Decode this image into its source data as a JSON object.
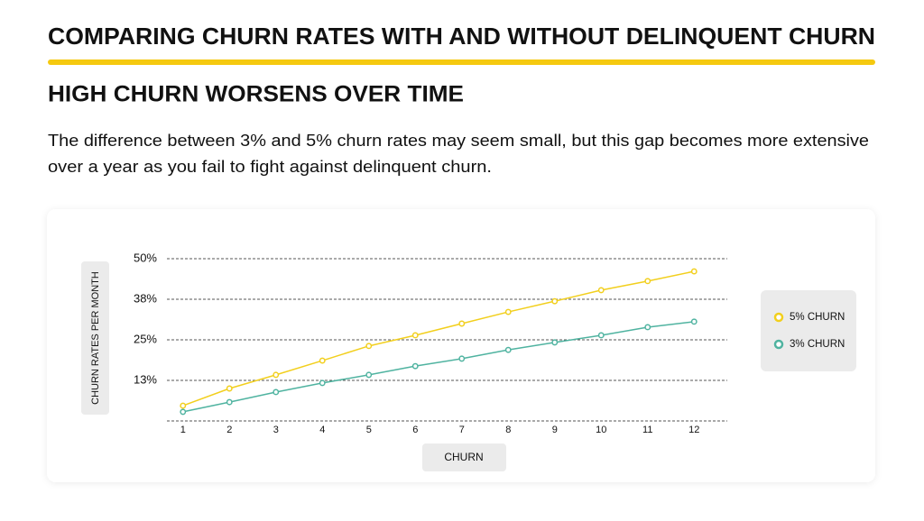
{
  "header": {
    "title": "COMPARING CHURN RATES WITH AND WITHOUT DELINQUENT CHURN",
    "subtitle": "HIGH CHURN WORSENS OVER TIME",
    "body_lines": [
      "The difference between 3% and 5% churn rates may seem small, but this gap becomes more extensive",
      "over a year as you fail to fight against delinquent churn."
    ]
  },
  "chart_data": {
    "type": "line",
    "xlabel": "CHURN",
    "ylabel": "CHURN RATES PER MONTH",
    "categories": [
      "1",
      "2",
      "3",
      "4",
      "5",
      "6",
      "7",
      "8",
      "9",
      "10",
      "11",
      "12"
    ],
    "ylim": [
      0,
      50
    ],
    "yticks": [
      {
        "value": 12.5,
        "label": "13%"
      },
      {
        "value": 25,
        "label": "25%"
      },
      {
        "value": 37.5,
        "label": "38%"
      },
      {
        "value": 50,
        "label": "50%"
      }
    ],
    "grid": true,
    "legend": "right",
    "series": [
      {
        "name": "5% CHURN",
        "color": "#f2cf1d",
        "values": [
          4.7,
          10,
          14.2,
          18.6,
          23.1,
          26.4,
          30,
          33.6,
          36.9,
          40.3,
          43.1,
          46.1
        ]
      },
      {
        "name": "3% CHURN",
        "color": "#4fb3a0",
        "values": [
          2.8,
          5.8,
          8.9,
          11.7,
          14.2,
          16.9,
          19.2,
          21.9,
          24.2,
          26.4,
          28.9,
          30.6
        ]
      }
    ]
  }
}
